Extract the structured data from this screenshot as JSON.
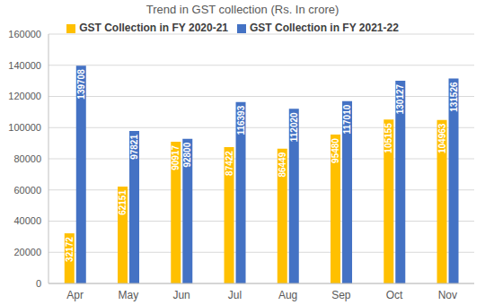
{
  "chart_data": {
    "type": "bar",
    "title": "Trend in GST collection (Rs. In crore)",
    "categories": [
      "Apr",
      "May",
      "Jun",
      "Jul",
      "Aug",
      "Sep",
      "Oct",
      "Nov"
    ],
    "series": [
      {
        "name": "GST Collection in FY 2020-21",
        "color": "#ffc000",
        "values": [
          32172,
          62151,
          90917,
          87422,
          86449,
          95480,
          105155,
          104963
        ]
      },
      {
        "name": "GST Collection in FY 2021-22",
        "color": "#4472c4",
        "values": [
          139708,
          97821,
          92800,
          116393,
          112020,
          117010,
          130127,
          131526
        ]
      }
    ],
    "ylim": [
      0,
      160000
    ],
    "yticks": [
      0,
      20000,
      40000,
      60000,
      80000,
      100000,
      120000,
      140000,
      160000
    ],
    "grid": true,
    "legend": "top",
    "data_labels": true
  }
}
